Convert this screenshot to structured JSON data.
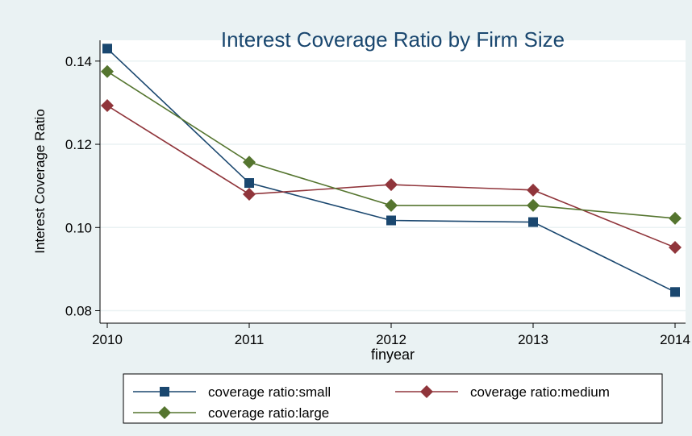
{
  "chart_data": {
    "type": "line",
    "title": "Interest Coverage Ratio by Firm Size",
    "xlabel": "finyear",
    "ylabel": "Interest Coverage Ratio",
    "x": [
      2010,
      2011,
      2012,
      2013,
      2014
    ],
    "x_tick_labels": [
      "2010",
      "2011",
      "2012",
      "2013",
      "2014"
    ],
    "y_ticks": [
      0.08,
      0.1,
      0.12,
      0.14
    ],
    "y_tick_labels": [
      "0.08",
      "0.10",
      "0.12",
      "0.14"
    ],
    "ylim": [
      0.077,
      0.145
    ],
    "grid": true,
    "legend_position": "bottom",
    "series": [
      {
        "name": "coverage ratio:small",
        "color": "#1a476f",
        "marker": "square",
        "values": [
          0.143,
          0.1107,
          0.1017,
          0.1013,
          0.0845
        ]
      },
      {
        "name": "coverage ratio:medium",
        "color": "#90353b",
        "marker": "diamond",
        "values": [
          0.1293,
          0.108,
          0.1103,
          0.109,
          0.0952
        ]
      },
      {
        "name": "coverage ratio:large",
        "color": "#55752f",
        "marker": "diamond",
        "values": [
          0.1375,
          0.1157,
          0.1053,
          0.1053,
          0.1022
        ]
      }
    ],
    "background_color": "#eaf2f3",
    "plot_background_color": "#ffffff"
  }
}
